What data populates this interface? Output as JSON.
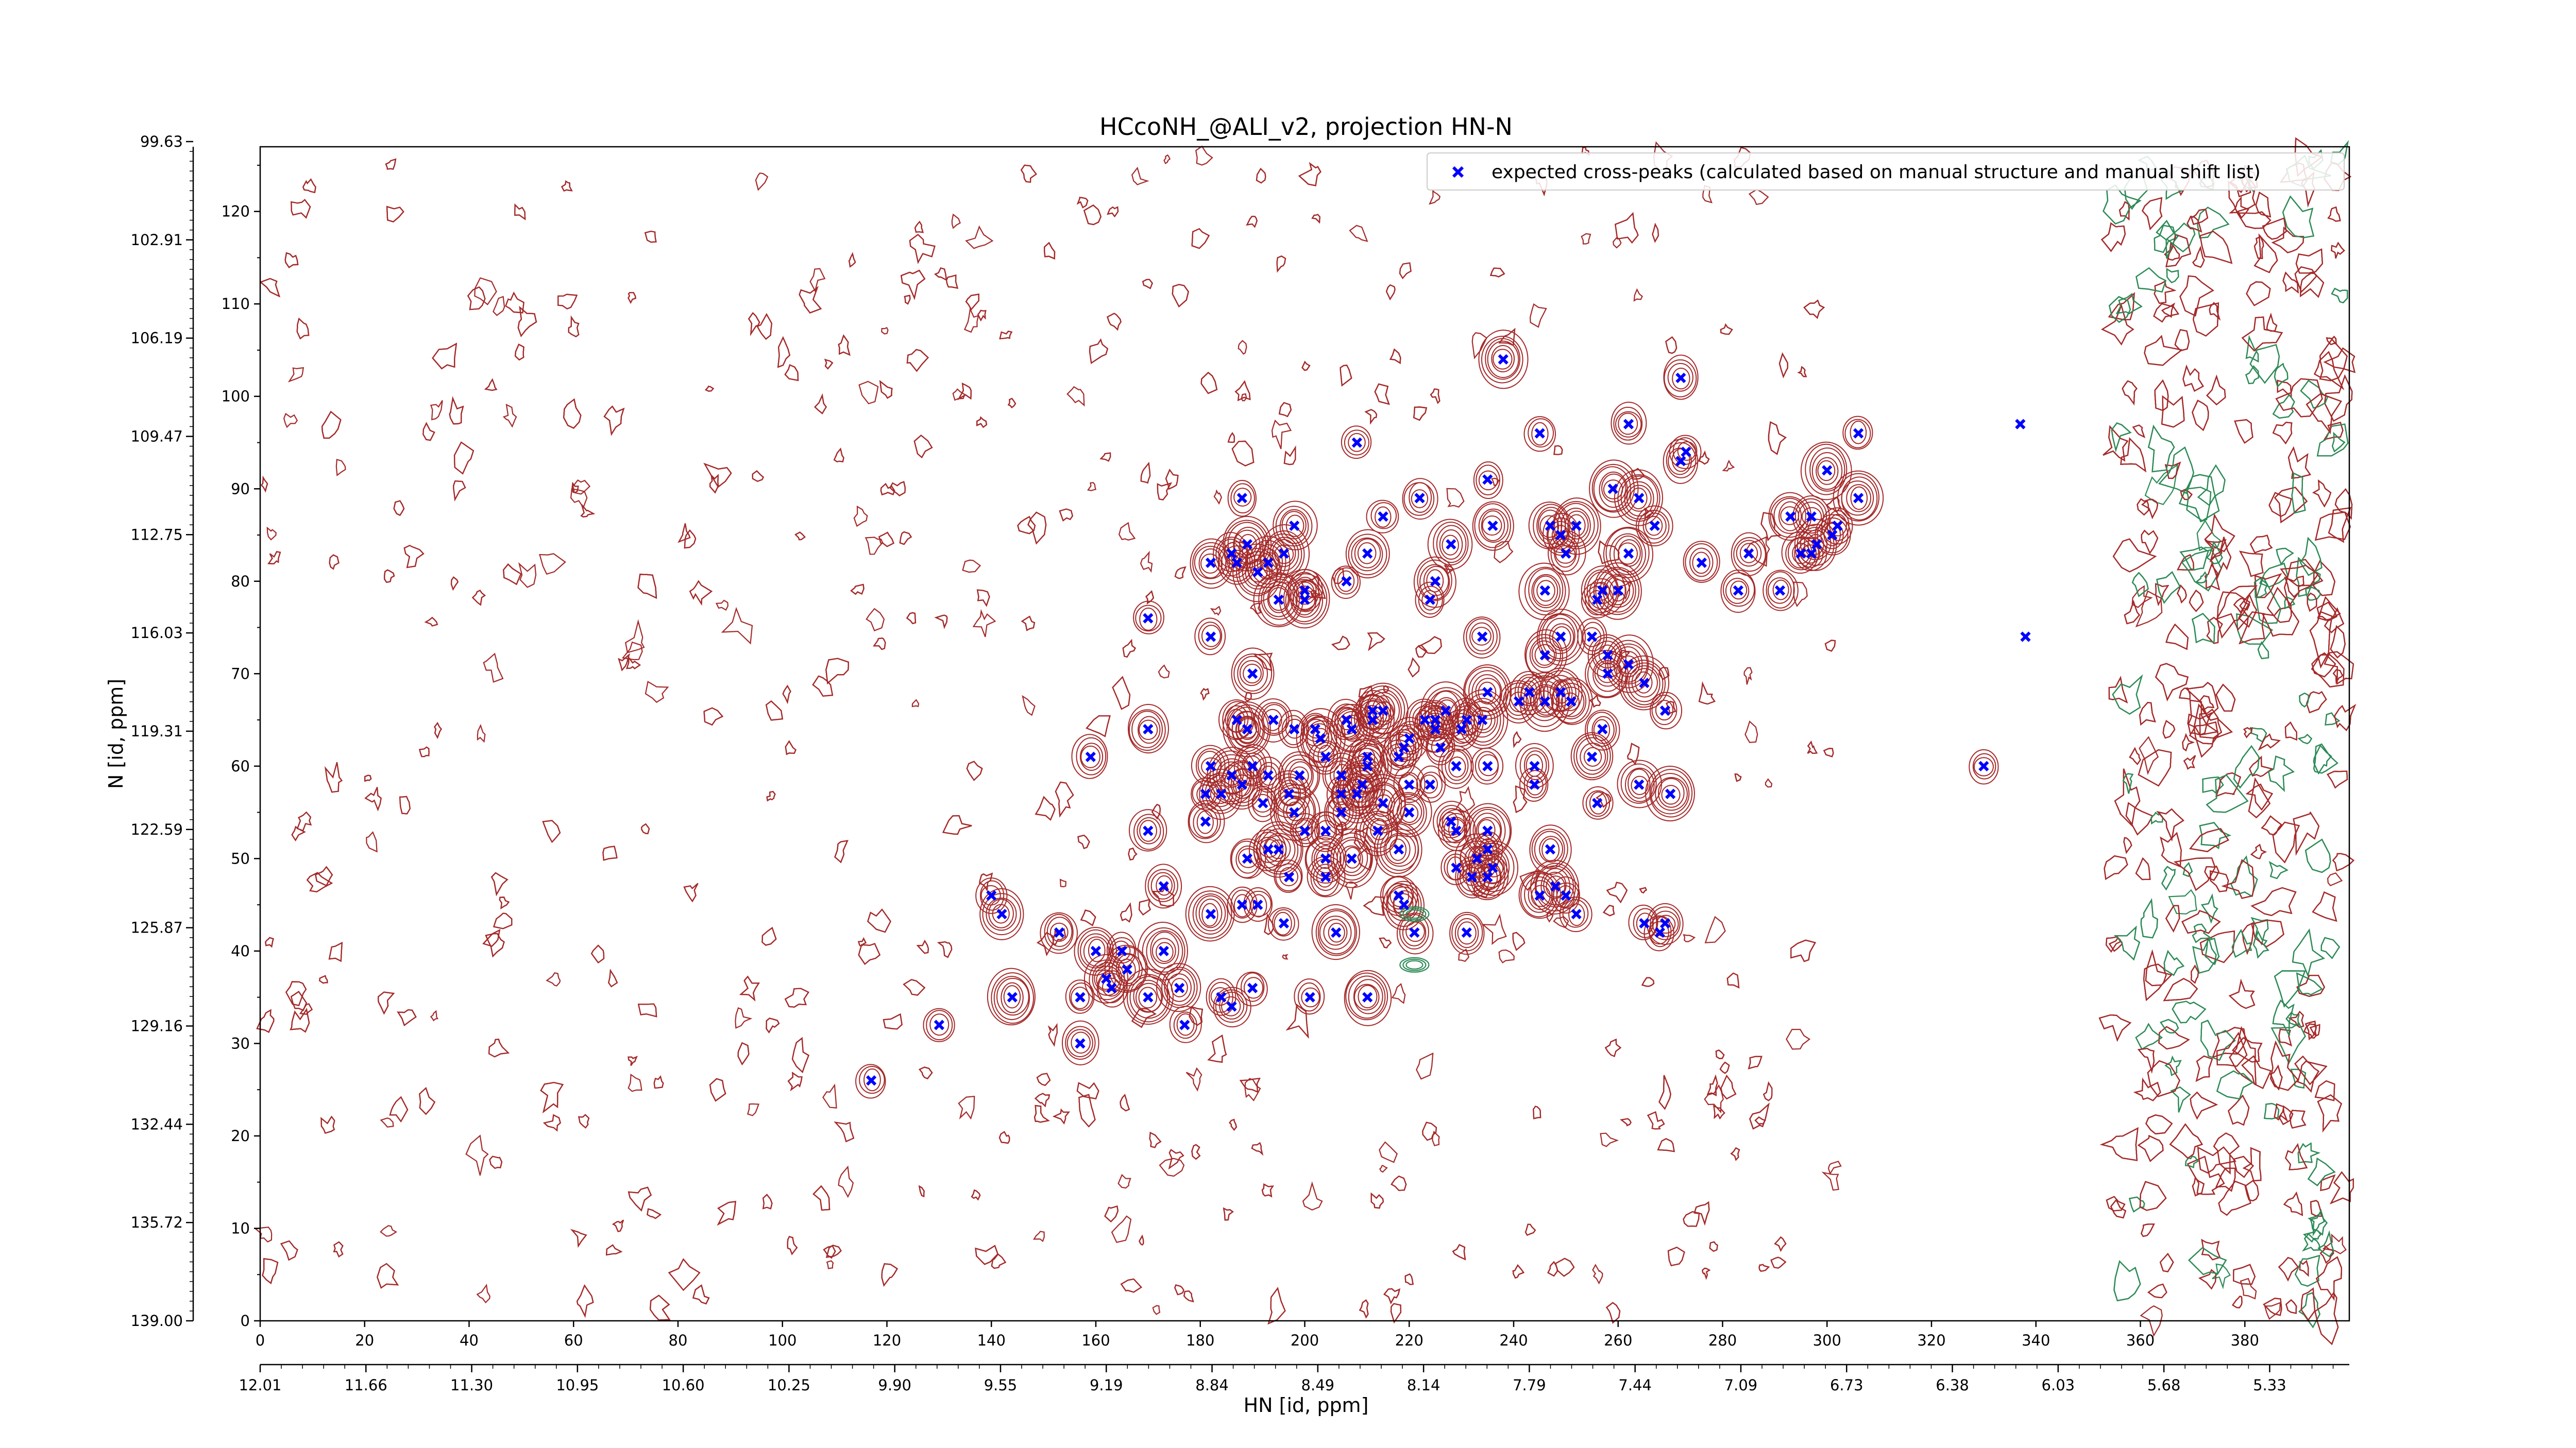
{
  "chart_data": {
    "type": "scatter",
    "title": "HCcoNH_@ALI_v2, projection HN-N",
    "xlabel": "HN [id, ppm]",
    "ylabel": "N [id, ppm]",
    "x_index_range": [
      0,
      400
    ],
    "y_index_range": [
      0,
      127
    ],
    "x_index_ticks": [
      0,
      20,
      40,
      60,
      80,
      100,
      120,
      140,
      160,
      180,
      200,
      220,
      240,
      260,
      280,
      300,
      320,
      340,
      360,
      380
    ],
    "y_index_ticks": [
      0,
      10,
      20,
      30,
      40,
      50,
      60,
      70,
      80,
      90,
      100,
      110,
      120
    ],
    "x_ppm_ticks": [
      "12.01",
      "11.66",
      "11.30",
      "10.95",
      "10.60",
      "10.25",
      "9.90",
      "9.55",
      "9.19",
      "8.84",
      "8.49",
      "8.14",
      "7.79",
      "7.44",
      "7.09",
      "6.73",
      "6.38",
      "6.03",
      "5.68",
      "5.33"
    ],
    "y_ppm_ticks": [
      "139.00",
      "135.72",
      "132.44",
      "129.16",
      "125.87",
      "122.59",
      "119.31",
      "116.03",
      "112.75",
      "109.47",
      "106.19",
      "102.91",
      "99.63"
    ],
    "contour_colors": {
      "positive": "#a52a2a",
      "negative": "#2e8b57"
    },
    "legend": {
      "position": "top-right"
    },
    "series": [
      {
        "name": "expected cross-peaks (calculated based on manual structure and manual shift list)",
        "color": "#0000ff",
        "marker": "x",
        "points": [
          [
            238,
            104
          ],
          [
            272,
            102
          ],
          [
            210,
            95
          ],
          [
            245,
            96
          ],
          [
            262,
            97
          ],
          [
            306,
            96
          ],
          [
            337,
            97
          ],
          [
            273,
            94
          ],
          [
            272,
            93
          ],
          [
            300,
            92
          ],
          [
            235,
            91
          ],
          [
            259,
            90
          ],
          [
            222,
            89
          ],
          [
            188,
            89
          ],
          [
            264,
            89
          ],
          [
            306,
            89
          ],
          [
            247,
            86
          ],
          [
            236,
            86
          ],
          [
            293,
            87
          ],
          [
            252,
            86
          ],
          [
            215,
            87
          ],
          [
            198,
            86
          ],
          [
            297,
            87
          ],
          [
            302,
            86
          ],
          [
            301,
            85
          ],
          [
            298,
            84
          ],
          [
            249,
            85
          ],
          [
            267,
            86
          ],
          [
            189,
            84
          ],
          [
            186,
            83
          ],
          [
            196,
            83
          ],
          [
            212,
            83
          ],
          [
            228,
            84
          ],
          [
            250,
            83
          ],
          [
            262,
            83
          ],
          [
            295,
            83
          ],
          [
            297,
            83
          ],
          [
            285,
            83
          ],
          [
            182,
            82
          ],
          [
            187,
            82
          ],
          [
            193,
            82
          ],
          [
            191,
            81
          ],
          [
            208,
            80
          ],
          [
            225,
            80
          ],
          [
            200,
            79
          ],
          [
            246,
            79
          ],
          [
            257,
            79
          ],
          [
            260,
            79
          ],
          [
            283,
            79
          ],
          [
            291,
            79
          ],
          [
            276,
            82
          ],
          [
            170,
            76
          ],
          [
            195,
            78
          ],
          [
            200,
            78
          ],
          [
            224,
            78
          ],
          [
            256,
            78
          ],
          [
            182,
            74
          ],
          [
            234,
            74
          ],
          [
            249,
            74
          ],
          [
            255,
            74
          ],
          [
            338,
            74
          ],
          [
            246,
            72
          ],
          [
            258,
            72
          ],
          [
            262,
            71
          ],
          [
            190,
            70
          ],
          [
            258,
            70
          ],
          [
            265,
            69
          ],
          [
            243,
            68
          ],
          [
            249,
            68
          ],
          [
            241,
            67
          ],
          [
            235,
            68
          ],
          [
            251,
            67
          ],
          [
            246,
            67
          ],
          [
            227,
            66
          ],
          [
            215,
            66
          ],
          [
            213,
            66
          ],
          [
            230,
            64
          ],
          [
            225,
            64
          ],
          [
            225,
            65
          ],
          [
            187,
            65
          ],
          [
            189,
            64
          ],
          [
            194,
            65
          ],
          [
            198,
            64
          ],
          [
            202,
            64
          ],
          [
            208,
            65
          ],
          [
            209,
            64
          ],
          [
            213,
            65
          ],
          [
            223,
            65
          ],
          [
            234,
            65
          ],
          [
            257,
            64
          ],
          [
            269,
            66
          ],
          [
            231,
            65
          ],
          [
            170,
            64
          ],
          [
            189,
            64
          ],
          [
            203,
            63
          ],
          [
            220,
            63
          ],
          [
            226,
            62
          ],
          [
            219,
            62
          ],
          [
            159,
            61
          ],
          [
            182,
            60
          ],
          [
            190,
            60
          ],
          [
            204,
            61
          ],
          [
            212,
            61
          ],
          [
            218,
            61
          ],
          [
            235,
            60
          ],
          [
            244,
            60
          ],
          [
            255,
            61
          ],
          [
            186,
            59
          ],
          [
            199,
            59
          ],
          [
            207,
            59
          ],
          [
            212,
            60
          ],
          [
            211,
            58
          ],
          [
            229,
            60
          ],
          [
            330,
            60
          ],
          [
            193,
            59
          ],
          [
            188,
            58
          ],
          [
            197,
            57
          ],
          [
            207,
            57
          ],
          [
            210,
            57
          ],
          [
            220,
            58
          ],
          [
            224,
            58
          ],
          [
            244,
            58
          ],
          [
            264,
            58
          ],
          [
            270,
            57
          ],
          [
            256,
            56
          ],
          [
            181,
            57
          ],
          [
            184,
            57
          ],
          [
            192,
            56
          ],
          [
            198,
            55
          ],
          [
            207,
            55
          ],
          [
            215,
            56
          ],
          [
            220,
            55
          ],
          [
            228,
            54
          ],
          [
            181,
            54
          ],
          [
            200,
            53
          ],
          [
            204,
            53
          ],
          [
            214,
            53
          ],
          [
            229,
            53
          ],
          [
            235,
            53
          ],
          [
            170,
            53
          ],
          [
            189,
            50
          ],
          [
            193,
            51
          ],
          [
            195,
            51
          ],
          [
            204,
            50
          ],
          [
            209,
            50
          ],
          [
            218,
            51
          ],
          [
            235,
            51
          ],
          [
            233,
            50
          ],
          [
            236,
            49
          ],
          [
            247,
            51
          ],
          [
            197,
            48
          ],
          [
            173,
            47
          ],
          [
            204,
            48
          ],
          [
            229,
            49
          ],
          [
            235,
            48
          ],
          [
            232,
            48
          ],
          [
            248,
            47
          ],
          [
            140,
            46
          ],
          [
            188,
            45
          ],
          [
            191,
            45
          ],
          [
            218,
            46
          ],
          [
            250,
            46
          ],
          [
            245,
            46
          ],
          [
            142,
            44
          ],
          [
            182,
            44
          ],
          [
            196,
            43
          ],
          [
            219,
            45
          ],
          [
            252,
            44
          ],
          [
            265,
            43
          ],
          [
            153,
            42
          ],
          [
            206,
            42
          ],
          [
            221,
            42
          ],
          [
            231,
            42
          ],
          [
            269,
            43
          ],
          [
            268,
            42
          ],
          [
            160,
            40
          ],
          [
            165,
            40
          ],
          [
            173,
            40
          ],
          [
            166,
            38
          ],
          [
            162,
            37
          ],
          [
            144,
            35
          ],
          [
            157,
            35
          ],
          [
            163,
            36
          ],
          [
            176,
            36
          ],
          [
            184,
            35
          ],
          [
            190,
            36
          ],
          [
            201,
            35
          ],
          [
            212,
            35
          ],
          [
            170,
            35
          ],
          [
            186,
            34
          ],
          [
            130,
            32
          ],
          [
            177,
            32
          ],
          [
            157,
            30
          ],
          [
            117,
            26
          ]
        ]
      }
    ]
  }
}
